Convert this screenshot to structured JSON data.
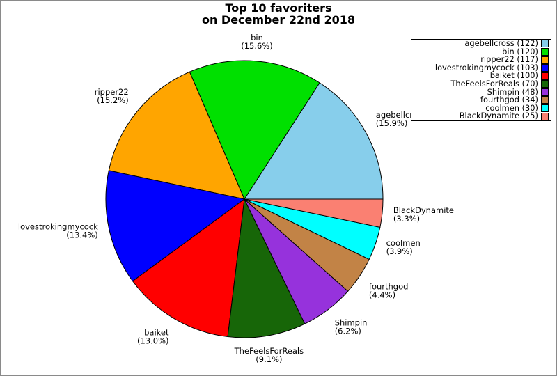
{
  "title": {
    "line1": "Top 10 favoriters",
    "line2": "on December 22nd 2018"
  },
  "chart_data": {
    "type": "pie",
    "title": "Top 10 favoriters on December 22nd 2018",
    "total": 769,
    "start_angle_deg": 0,
    "direction": "counterclockwise",
    "legend_position": "upper right",
    "wedge_edge_color": "#000000",
    "slices": [
      {
        "name": "agebellcross",
        "value": 122,
        "percent": 15.9,
        "percent_label": "(15.9%)",
        "legend_label": "agebellcross (122)",
        "color": "#87CEEB"
      },
      {
        "name": "bin",
        "value": 120,
        "percent": 15.6,
        "percent_label": "(15.6%)",
        "legend_label": "bin (120)",
        "color": "#00E000"
      },
      {
        "name": "ripper22",
        "value": 117,
        "percent": 15.2,
        "percent_label": "(15.2%)",
        "legend_label": "ripper22 (117)",
        "color": "#FFA500"
      },
      {
        "name": "lovestrokingmycock",
        "value": 103,
        "percent": 13.4,
        "percent_label": "(13.4%)",
        "legend_label": "lovestrokingmycock (103)",
        "color": "#0000FF"
      },
      {
        "name": "baiket",
        "value": 100,
        "percent": 13.0,
        "percent_label": "(13.0%)",
        "legend_label": "baiket (100)",
        "color": "#FF0000"
      },
      {
        "name": "TheFeelsForReals",
        "value": 70,
        "percent": 9.1,
        "percent_label": "(9.1%)",
        "legend_label": "TheFeelsForReals (70)",
        "color": "#176608"
      },
      {
        "name": "Shimpin",
        "value": 48,
        "percent": 6.2,
        "percent_label": "(6.2%)",
        "legend_label": "Shimpin (48)",
        "color": "#9632DC"
      },
      {
        "name": "fourthgod",
        "value": 34,
        "percent": 4.4,
        "percent_label": "(4.4%)",
        "legend_label": "fourthgod (34)",
        "color": "#C28346"
      },
      {
        "name": "coolmen",
        "value": 30,
        "percent": 3.9,
        "percent_label": "(3.9%)",
        "legend_label": "coolmen (30)",
        "color": "#00FFFF"
      },
      {
        "name": "BlackDynamite",
        "value": 25,
        "percent": 3.3,
        "percent_label": "(3.3%)",
        "legend_label": "BlackDynamite (25)",
        "color": "#FA8072"
      }
    ]
  }
}
